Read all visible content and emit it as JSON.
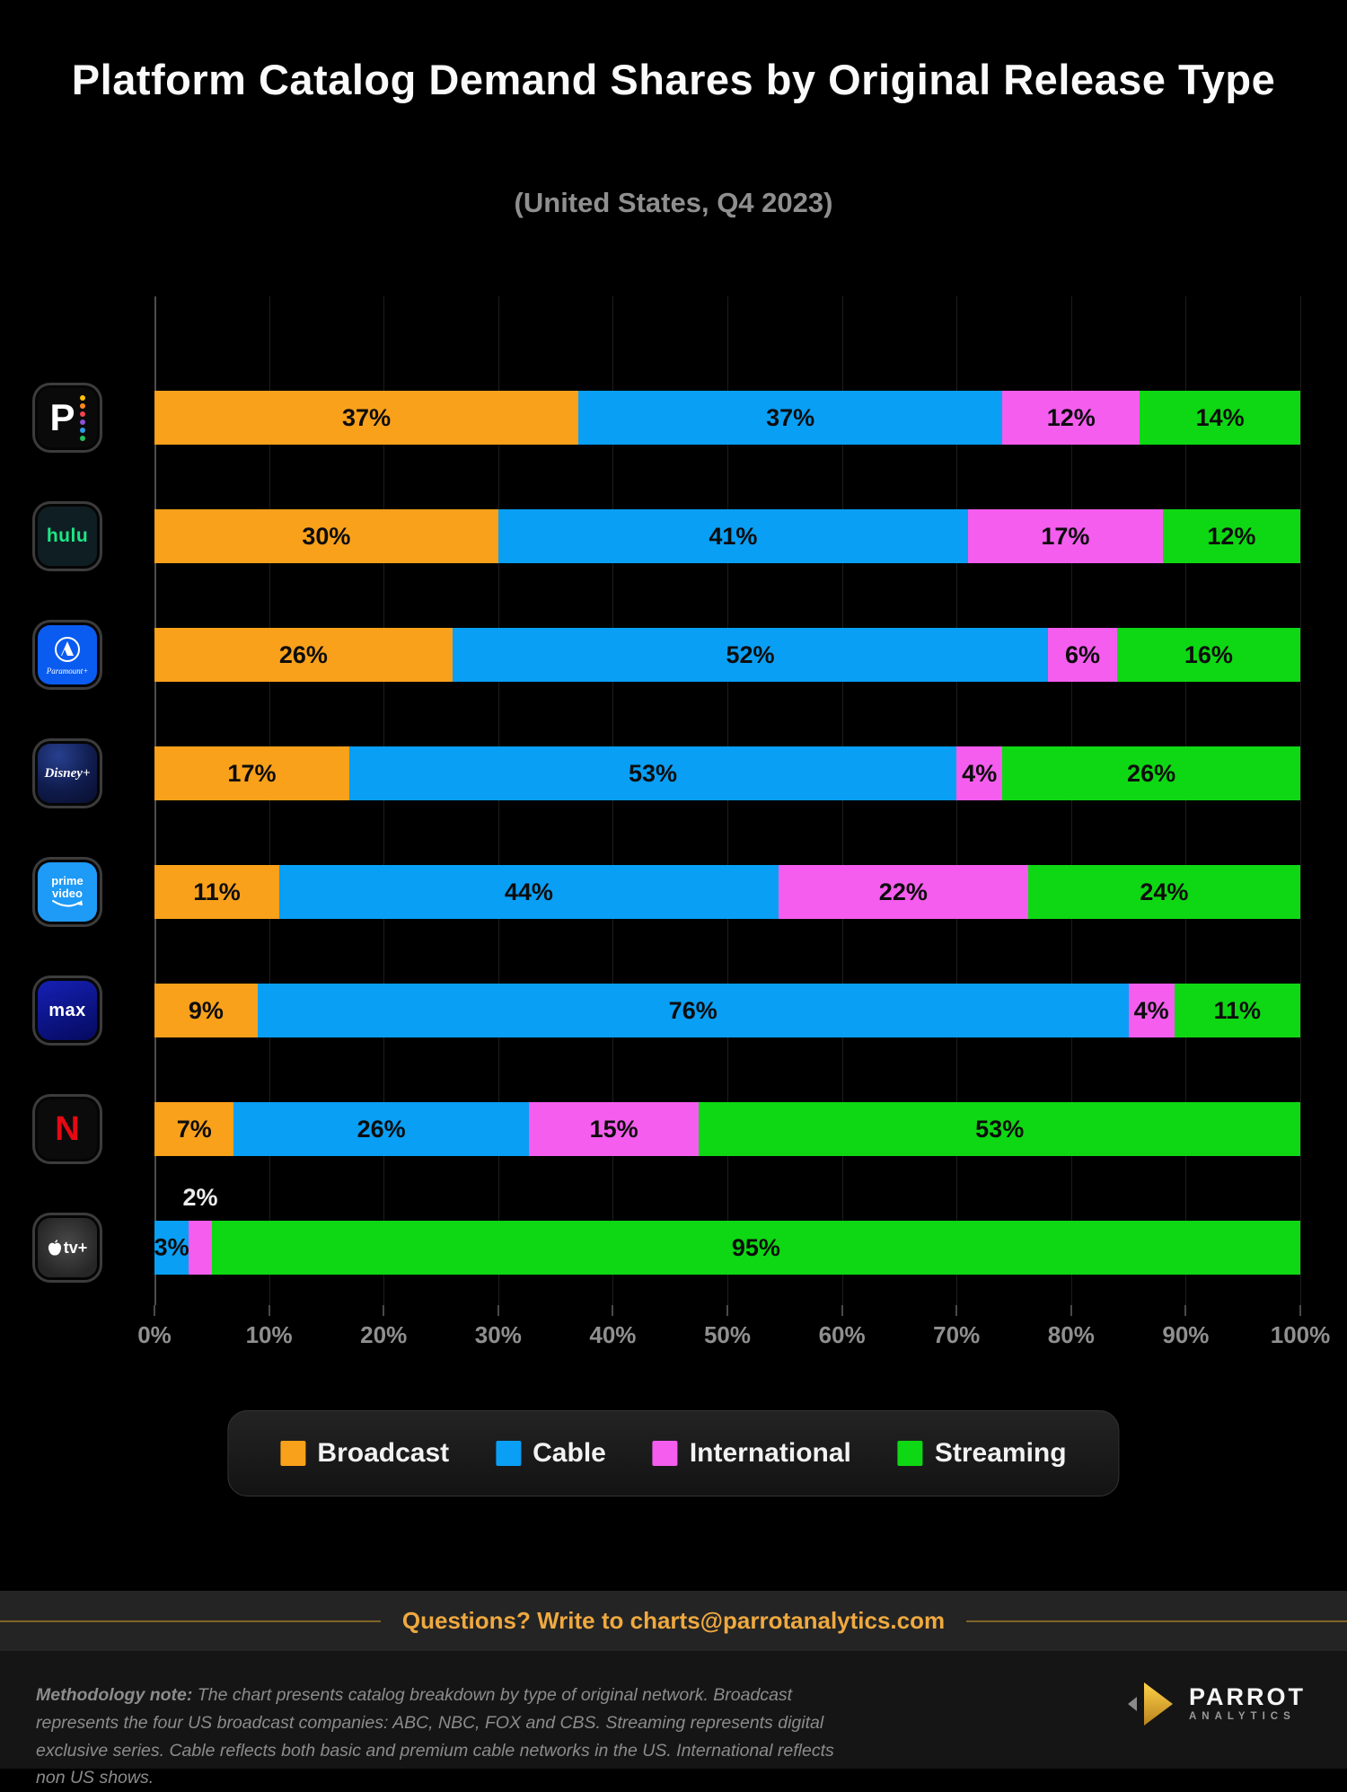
{
  "title": "Platform Catalog Demand Shares by Original Release Type",
  "subtitle": "(United States, Q4 2023)",
  "chart_data": {
    "type": "bar",
    "stacked": true,
    "orientation": "horizontal",
    "unit": "%",
    "xlim": [
      0,
      100
    ],
    "grid": true,
    "legend_position": "bottom",
    "x_ticks": [
      "0%",
      "10%",
      "20%",
      "30%",
      "40%",
      "50%",
      "60%",
      "70%",
      "80%",
      "90%",
      "100%"
    ],
    "categories": [
      "Peacock",
      "Hulu",
      "Paramount+",
      "Disney+",
      "Prime Video",
      "Max",
      "Netflix",
      "Apple TV+"
    ],
    "series": [
      {
        "name": "Broadcast",
        "color": "#F9A11B",
        "values": [
          37,
          30,
          26,
          17,
          11,
          9,
          7,
          0
        ]
      },
      {
        "name": "Cable",
        "color": "#099FF5",
        "values": [
          37,
          41,
          52,
          53,
          44,
          76,
          26,
          3
        ]
      },
      {
        "name": "International",
        "color": "#F45DEE",
        "values": [
          12,
          17,
          6,
          4,
          22,
          4,
          15,
          2
        ]
      },
      {
        "name": "Streaming",
        "color": "#0ED813",
        "values": [
          14,
          12,
          16,
          26,
          24,
          11,
          53,
          95
        ]
      }
    ],
    "label_overrides": [
      {
        "category": "Apple TV+",
        "series": "Cable",
        "placement": "overflow-start"
      },
      {
        "category": "Apple TV+",
        "series": "International",
        "placement": "above",
        "color": "#EDEDED"
      }
    ]
  },
  "legend": [
    {
      "label": "Broadcast",
      "color": "#F9A11B"
    },
    {
      "label": "Cable",
      "color": "#099FF5"
    },
    {
      "label": "International",
      "color": "#F45DEE"
    },
    {
      "label": "Streaming",
      "color": "#0ED813"
    }
  ],
  "contact_bar": {
    "bold": "Questions?",
    "text": " Write to charts@parrotanalytics.com"
  },
  "methodology": {
    "label": "Methodology note:",
    "text": " The chart presents catalog breakdown by type of original network. Broadcast represents the four US broadcast companies: ABC, NBC, FOX and CBS. Streaming represents digital exclusive series. Cable reflects both basic and premium cable networks in the US. International reflects non US shows."
  },
  "brand": {
    "name": "PARROT",
    "sub": "ANALYTICS"
  },
  "logos": {
    "peacock": {
      "letter": "P"
    },
    "hulu": {
      "text": "hulu"
    },
    "paramount": {
      "text": "Paramount+"
    },
    "disney": {
      "text": "Disney+"
    },
    "prime": {
      "line1": "prime",
      "line2": "video"
    },
    "max": {
      "text": "max"
    },
    "netflix": {
      "letter": "N"
    },
    "apple": {
      "text": "tv+"
    }
  }
}
